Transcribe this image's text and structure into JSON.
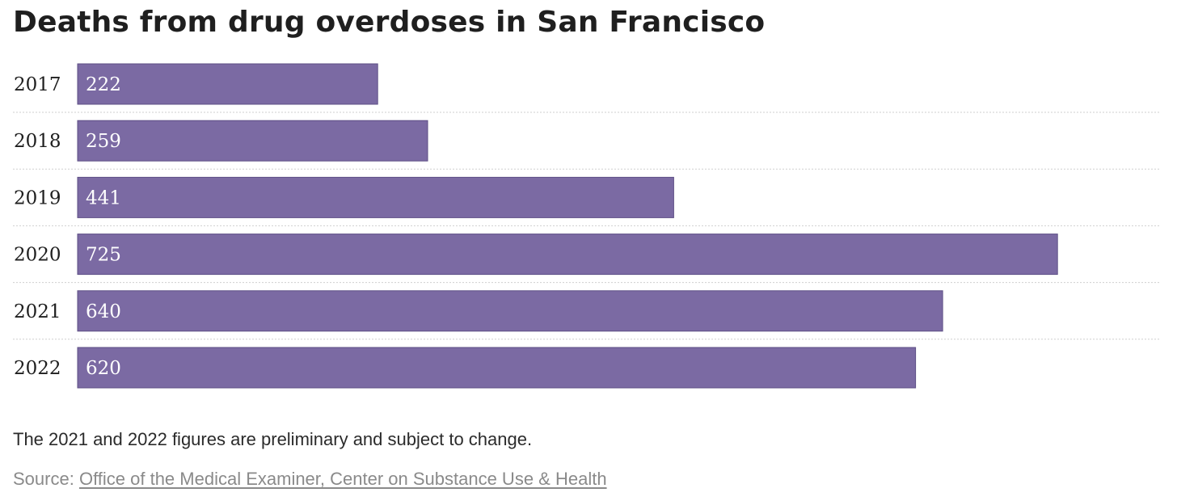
{
  "chart_data": {
    "type": "bar",
    "orientation": "horizontal",
    "title": "Deaths from drug overdoses in San Francisco",
    "categories": [
      "2017",
      "2018",
      "2019",
      "2020",
      "2021",
      "2022"
    ],
    "values": [
      222,
      259,
      441,
      725,
      640,
      620
    ],
    "value_labels": [
      "222",
      "259",
      "441",
      "725",
      "640",
      "620"
    ],
    "xlabel": "",
    "ylabel": "",
    "xlim": [
      0,
      760
    ],
    "grid": false,
    "legend": "none",
    "bar_color": "#7b6aa3"
  },
  "note": "The 2021 and 2022 figures are preliminary and subject to change.",
  "source": {
    "prefix": "Source:",
    "link_text": "Office of the Medical Examiner, Center on Substance Use & Health"
  }
}
